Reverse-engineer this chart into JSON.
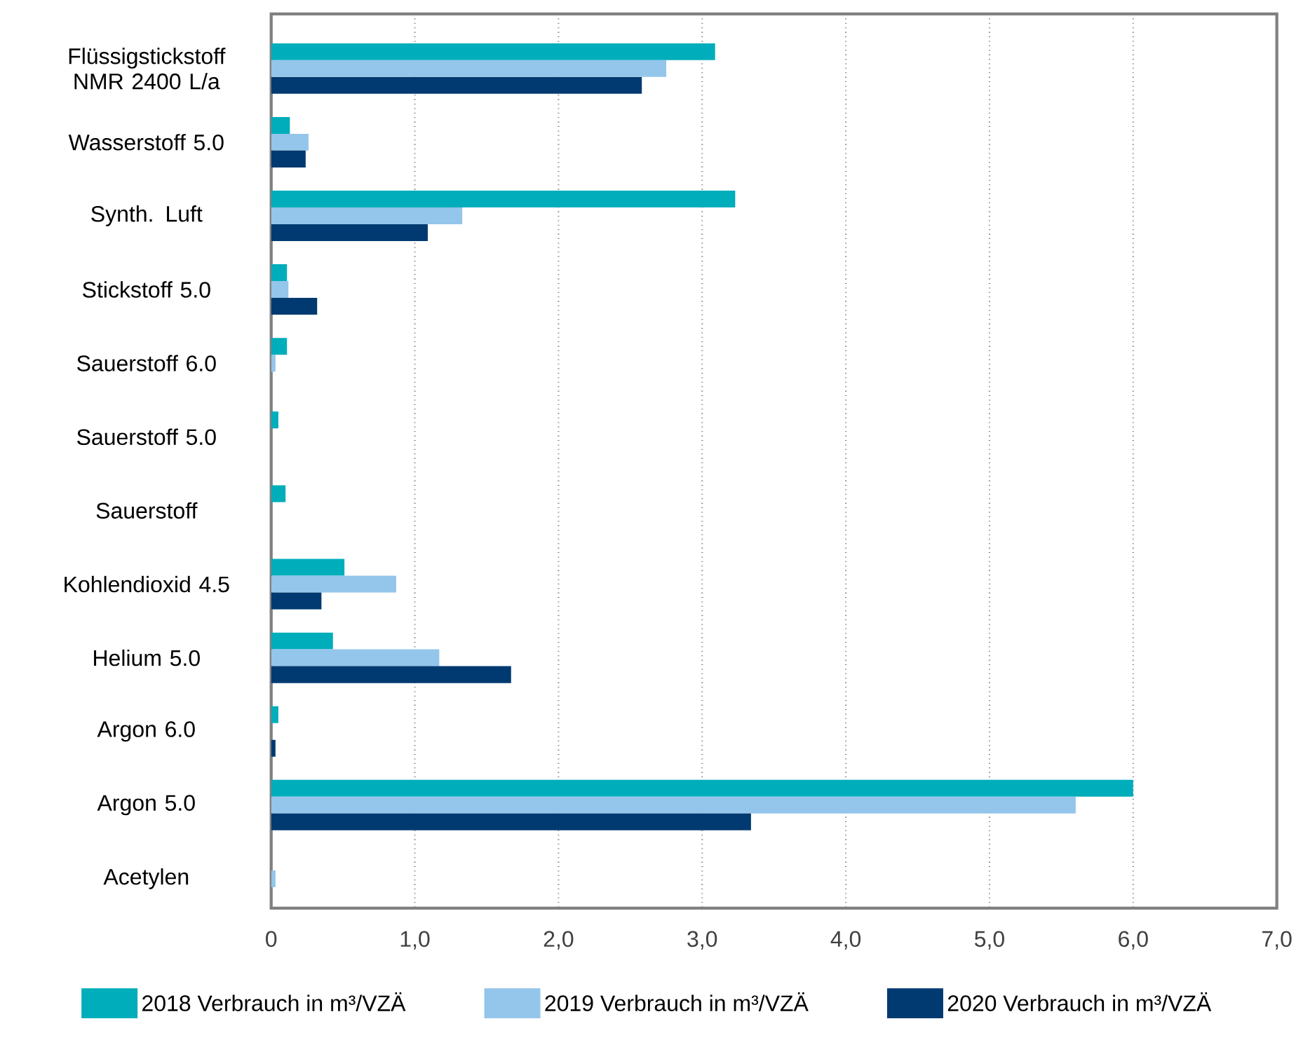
{
  "chart_data": {
    "type": "bar",
    "orientation": "horizontal",
    "categories": [
      "Flüssigstickstoff NMR 2400 L/a",
      "Wasserstoff 5.0",
      "Synth. Luft",
      "Stickstoff 5.0",
      "Sauerstoff 6.0",
      "Sauerstoff 5.0",
      "Sauerstoff",
      "Kohlendioxid 4.5",
      "Helium 5.0",
      "Argon 6.0",
      "Argon 5.0",
      "Acetylen"
    ],
    "series": [
      {
        "name": "2018 Verbrauch in m³/VZÄ",
        "color": "#00adbb",
        "values": [
          3.09,
          0.13,
          3.23,
          0.11,
          0.11,
          0.05,
          0.1,
          0.51,
          0.43,
          0.05,
          6.0,
          null
        ]
      },
      {
        "name": "2019 Verbrauch in m³/VZÄ",
        "color": "#94c5ea",
        "values": [
          2.75,
          0.26,
          1.33,
          0.12,
          0.03,
          null,
          null,
          0.87,
          1.17,
          null,
          5.6,
          0.03
        ]
      },
      {
        "name": "2020 Verbrauch in m³/VZÄ",
        "color": "#003a70",
        "values": [
          2.58,
          0.24,
          1.09,
          0.32,
          null,
          null,
          null,
          0.35,
          1.67,
          0.03,
          3.34,
          null
        ]
      }
    ],
    "xlim": [
      0,
      7
    ],
    "xticks": [
      0,
      {
        "value": 1,
        "label": "1,0"
      },
      {
        "value": 2,
        "label": "2,0"
      },
      {
        "value": 3,
        "label": "3,0"
      },
      {
        "value": 4,
        "label": "4,0"
      },
      {
        "value": 5,
        "label": "5,0"
      },
      {
        "value": 6,
        "label": "6,0"
      },
      {
        "value": 7,
        "label": "7,0"
      }
    ],
    "grid": "x",
    "legend": "bottom"
  }
}
